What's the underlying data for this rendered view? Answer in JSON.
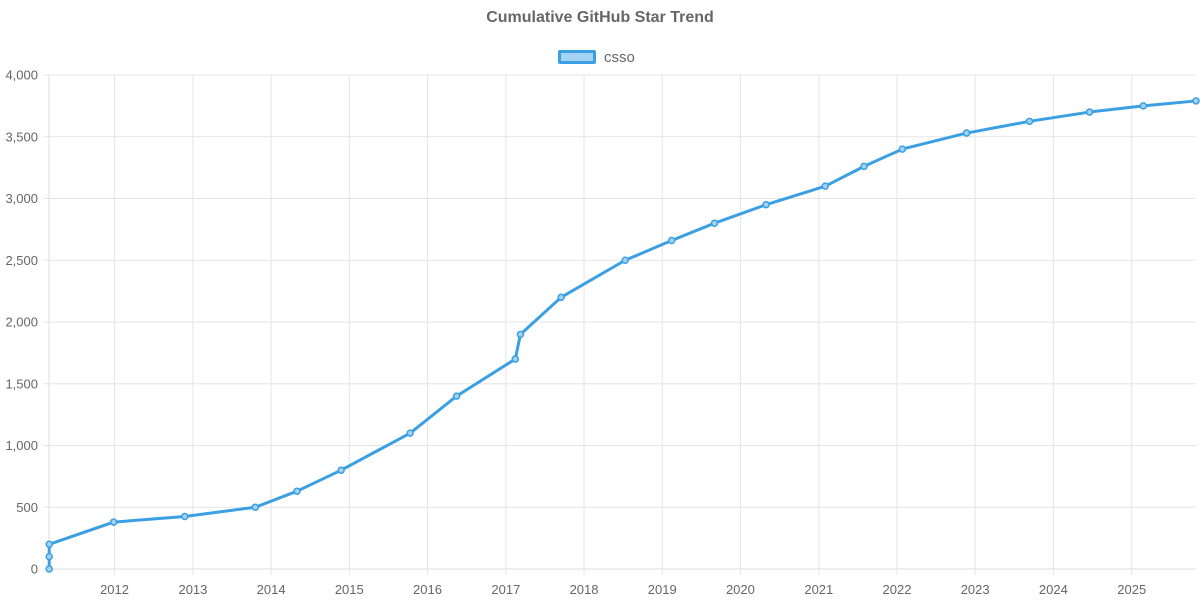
{
  "chart_data": {
    "type": "line",
    "title": "Cumulative GitHub Star Trend",
    "xlabel": "",
    "ylabel": "",
    "legend_position": "top-center",
    "grid": true,
    "colors": {
      "line": "#3b9fe3",
      "fill": "#a4d2f3",
      "grid": "#e5e5e5",
      "text": "#666666"
    },
    "xlim": [
      "2011-03-01",
      "2025-10-28"
    ],
    "ylim": [
      0,
      4000
    ],
    "x_ticks": [
      "2012",
      "2013",
      "2014",
      "2015",
      "2016",
      "2017",
      "2018",
      "2019",
      "2020",
      "2021",
      "2022",
      "2023",
      "2024",
      "2025"
    ],
    "y_ticks": [
      "0",
      "500",
      "1,000",
      "1,500",
      "2,000",
      "2,500",
      "3,000",
      "3,500",
      "4,000"
    ],
    "series": [
      {
        "name": "csso",
        "points": [
          {
            "x": "2011-03-02",
            "y": 0
          },
          {
            "x": "2011-03-02",
            "y": 100
          },
          {
            "x": "2011-03-02",
            "y": 200
          },
          {
            "x": "2011-12-28",
            "y": 380
          },
          {
            "x": "2012-11-24",
            "y": 425
          },
          {
            "x": "2013-10-19",
            "y": 500
          },
          {
            "x": "2014-05-02",
            "y": 630
          },
          {
            "x": "2014-11-24",
            "y": 800
          },
          {
            "x": "2015-10-12",
            "y": 1100
          },
          {
            "x": "2016-05-16",
            "y": 1400
          },
          {
            "x": "2017-02-14",
            "y": 1700
          },
          {
            "x": "2017-03-10",
            "y": 1900
          },
          {
            "x": "2017-09-16",
            "y": 2200
          },
          {
            "x": "2018-07-12",
            "y": 2500
          },
          {
            "x": "2019-02-14",
            "y": 2660
          },
          {
            "x": "2019-09-02",
            "y": 2800
          },
          {
            "x": "2020-04-30",
            "y": 2950
          },
          {
            "x": "2021-01-31",
            "y": 3100
          },
          {
            "x": "2021-07-31",
            "y": 3260
          },
          {
            "x": "2022-01-26",
            "y": 3400
          },
          {
            "x": "2022-11-22",
            "y": 3530
          },
          {
            "x": "2023-09-12",
            "y": 3625
          },
          {
            "x": "2024-06-18",
            "y": 3700
          },
          {
            "x": "2025-02-24",
            "y": 3750
          },
          {
            "x": "2025-10-28",
            "y": 3790
          }
        ]
      }
    ]
  }
}
